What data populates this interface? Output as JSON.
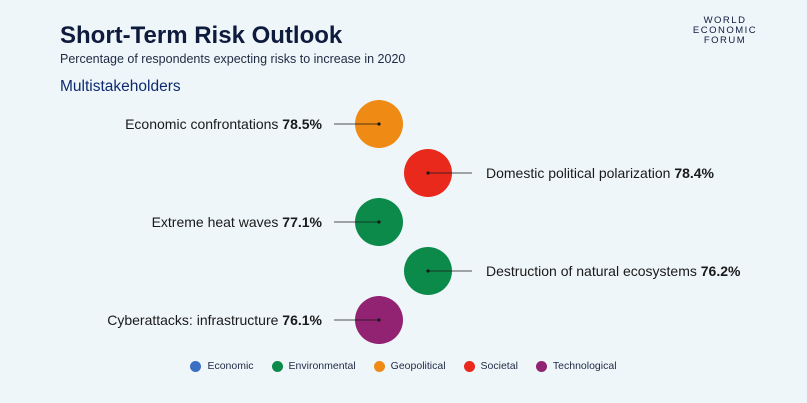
{
  "header": {
    "title": "Short-Term Risk Outlook",
    "subtitle": "Percentage of respondents expecting risks to increase in 2020",
    "section": "Multistakeholders"
  },
  "logo": {
    "lines": [
      "WORLD",
      "ECONOMIC",
      "FORUM"
    ]
  },
  "chart_data": {
    "type": "bubble",
    "title": "Short-Term Risk Outlook",
    "subtitle": "Percentage of respondents expecting risks to increase in 2020",
    "unit": "%",
    "risks": [
      {
        "label": "Economic confrontations",
        "value": 78.5,
        "value_text": "78.5%",
        "category": "Geopolitical",
        "side": "left"
      },
      {
        "label": "Domestic political polarization",
        "value": 78.4,
        "value_text": "78.4%",
        "category": "Societal",
        "side": "right"
      },
      {
        "label": "Extreme heat waves",
        "value": 77.1,
        "value_text": "77.1%",
        "category": "Environmental",
        "side": "left"
      },
      {
        "label": "Destruction of natural ecosystems",
        "value": 76.2,
        "value_text": "76.2%",
        "category": "Environmental",
        "side": "right"
      },
      {
        "label": "Cyberattacks: infrastructure",
        "value": 76.1,
        "value_text": "76.1%",
        "category": "Technological",
        "side": "left"
      }
    ],
    "legend": [
      {
        "name": "Economic",
        "color": "#3a6fc4"
      },
      {
        "name": "Environmental",
        "color": "#0b8a4a"
      },
      {
        "name": "Geopolitical",
        "color": "#ef8a14"
      },
      {
        "name": "Societal",
        "color": "#e8291c"
      },
      {
        "name": "Technological",
        "color": "#922272"
      }
    ],
    "legend_placement": "bottom-center"
  }
}
